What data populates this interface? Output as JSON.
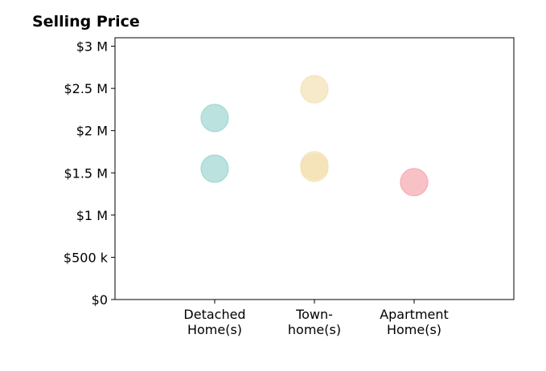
{
  "chart_data": {
    "type": "scatter",
    "title": "Selling Price",
    "xlabel": "",
    "ylabel": "",
    "categories": [
      {
        "lines": [
          "Detached",
          "Home(s)"
        ]
      },
      {
        "lines": [
          "Town-",
          "home(s)"
        ]
      },
      {
        "lines": [
          "Apartment",
          "Home(s)"
        ]
      }
    ],
    "x_range": [
      0,
      4
    ],
    "ylim": [
      0,
      3100000
    ],
    "y_ticks": [
      {
        "value": 0,
        "label": "$0"
      },
      {
        "value": 500000,
        "label": "$500 k"
      },
      {
        "value": 1000000,
        "label": "$1 M"
      },
      {
        "value": 1500000,
        "label": "$1.5 M"
      },
      {
        "value": 2000000,
        "label": "$2 M"
      },
      {
        "value": 2500000,
        "label": "$2.5 M"
      },
      {
        "value": 3000000,
        "label": "$3 M"
      }
    ],
    "grid": false,
    "points": [
      {
        "category": 0,
        "y": 2150000,
        "color": "#9ed6d0"
      },
      {
        "category": 0,
        "y": 1550000,
        "color": "#9ed6d0"
      },
      {
        "category": 1,
        "y": 2490000,
        "color": "#f3e1b4"
      },
      {
        "category": 1,
        "y": 1590000,
        "color": "#f3e1b4"
      },
      {
        "category": 1,
        "y": 1560000,
        "color": "#f3e1b4"
      },
      {
        "category": 2,
        "y": 1390000,
        "color": "#f5a7ae"
      }
    ]
  }
}
